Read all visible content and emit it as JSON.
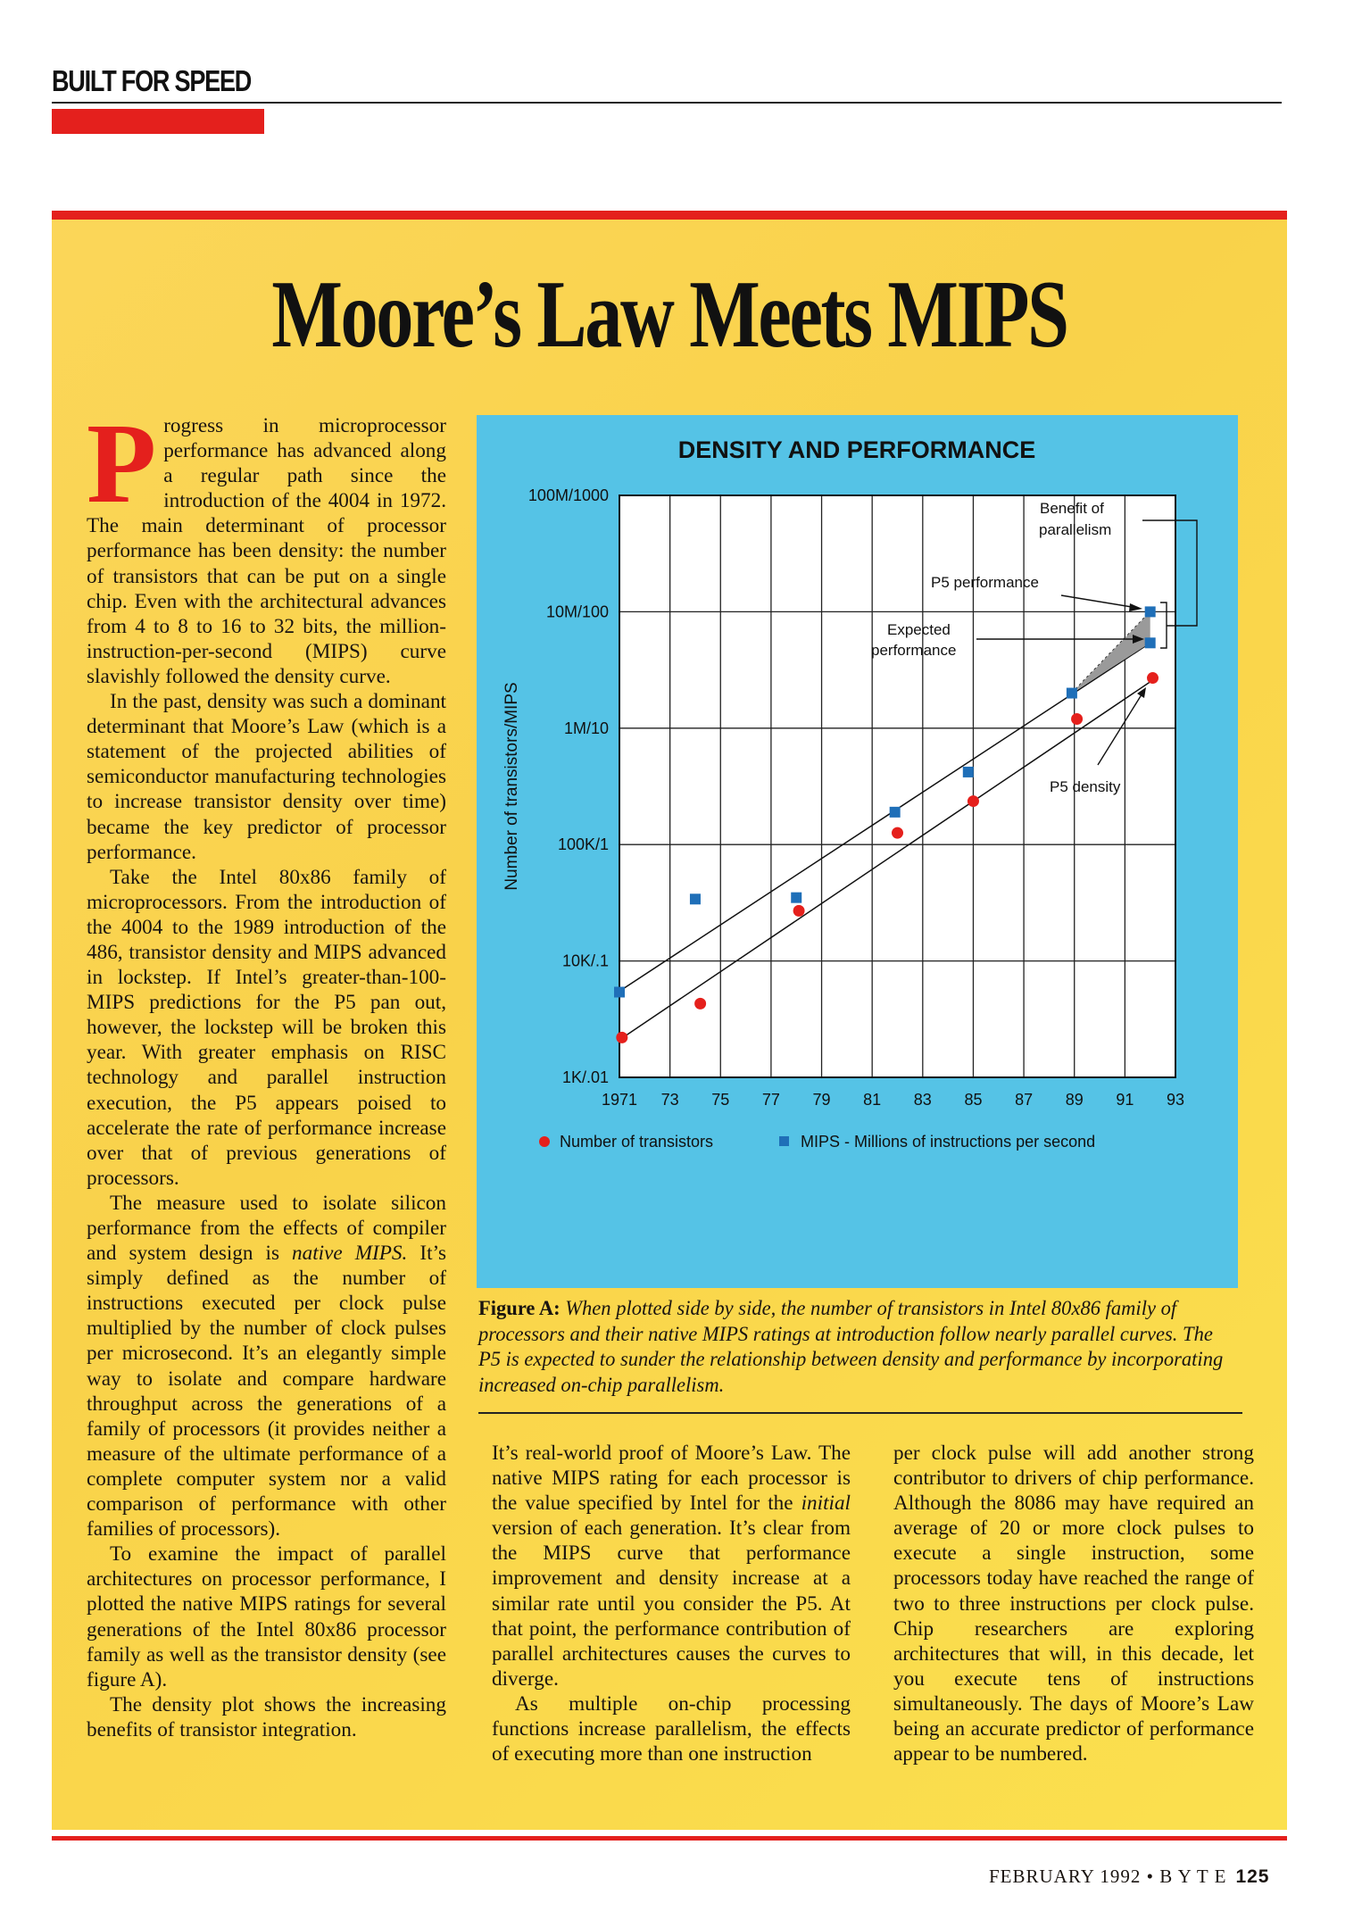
{
  "header": {
    "section_label": "BUILT FOR SPEED"
  },
  "article": {
    "title": "Moore’s Law Meets MIPS",
    "dropcap": "P",
    "col1": [
      "rogress in microprocessor performance has advanced along a regular path since the introduction of the 4004 in 1972. The main determinant of processor performance has been density: the number of transistors that can be put on a single chip. Even with the architectural advances from 4 to 8 to 16 to 32 bits, the million-instruction-per-second (MIPS) curve slavishly followed the density curve.",
      "In the past, density was such a dominant determinant that Moore’s Law (which is a statement of the projected abilities of semiconductor manufacturing technologies to increase transistor density over time) became the key predictor of processor performance.",
      "Take the Intel 80x86 family of microprocessors. From the introduction of the 4004 to the 1989 introduction of the 486, transistor density and MIPS advanced in lockstep. If Intel’s greater-than-100-MIPS predictions for the P5 pan out, however, the lockstep will be broken this year. With greater emphasis on RISC technology and parallel instruction execution, the P5 appears poised to accelerate the rate of performance increase over that of previous generations of processors.",
      "The measure used to isolate silicon performance from the effects of compiler and system design is",
      "native MIPS.",
      "It’s simply defined as the number of instructions executed per clock pulse multiplied by the number of clock pulses per microsecond. It’s an elegantly simple way to isolate and compare hardware throughput across the generations of a family of processors (it provides neither a measure of the ultimate performance of a complete computer system nor a valid comparison of performance with other families of processors).",
      "To examine the impact of parallel architectures on processor performance, I plotted the native MIPS ratings for several generations of the Intel 80x86 processor family as well as the transistor density (see figure A).",
      "The density plot shows the increasing benefits of transistor integration."
    ],
    "col2": [
      "It’s real-world proof of Moore’s Law. The native MIPS rating for each processor is the value specified by Intel for the",
      "initial",
      "version of each generation. It’s clear from the MIPS curve that performance improvement and density increase at a similar rate until you consider the P5. At that point, the performance contribution of parallel architectures causes the curves to diverge.",
      "As multiple on-chip processing functions increase parallelism, the effects of executing more than one instruction"
    ],
    "col3": [
      "per clock pulse will add another strong contributor to drivers of chip performance. Although the 8086 may have required an average of 20 or more clock pulses to execute a single instruction, some processors today have reached the range of two to three instructions per clock pulse. Chip researchers are exploring architectures that will, in this decade, let you execute tens of instructions simultaneously. The days of Moore’s Law being an accurate predictor of performance appear to be numbered."
    ]
  },
  "figure": {
    "caption_label": "Figure A:",
    "caption_text": "When plotted side by side, the number of transistors in Intel 80x86 family of processors and their native MIPS ratings at introduction follow nearly parallel curves. The P5 is expected to sunder the relationship between density and performance by incorporating increased on-chip parallelism."
  },
  "chart_data": {
    "type": "scatter",
    "title": "DENSITY AND PERFORMANCE",
    "ylabel": "Number of transistors/MIPS",
    "xlabel": "",
    "yscale": "log",
    "ylim": [
      1000,
      100000000
    ],
    "xlim": [
      1971,
      1993
    ],
    "x_ticks": [
      "1971",
      "73",
      "75",
      "77",
      "79",
      "81",
      "83",
      "85",
      "87",
      "89",
      "91",
      "93"
    ],
    "y_ticks": [
      {
        "value": 1000,
        "label": "1K/.01"
      },
      {
        "value": 10000,
        "label": "10K/.1"
      },
      {
        "value": 100000,
        "label": "100K/1"
      },
      {
        "value": 1000000,
        "label": "1M/10"
      },
      {
        "value": 10000000,
        "label": "10M/100"
      },
      {
        "value": 100000000,
        "label": "100M/1000"
      }
    ],
    "mips_to_transistor_scale": 100000,
    "grid": true,
    "legend_position": "bottom",
    "series": [
      {
        "name": "Number of transistors",
        "marker": "circle",
        "color": "#e5201c",
        "x": [
          1971.1,
          1974.2,
          1978.1,
          1982.0,
          1985.0,
          1989.1,
          1992.1
        ],
        "y": [
          2200,
          4300,
          27000,
          126000,
          236000,
          1200000,
          2700000
        ]
      },
      {
        "name": "MIPS - Millions of instructions per second",
        "marker": "square",
        "color": "#1f6fb8",
        "x": [
          1971.0,
          1974.0,
          1978.0,
          1981.9,
          1984.8,
          1988.9,
          1992.0,
          1992.0
        ],
        "y": [
          0.054,
          0.34,
          0.35,
          1.9,
          4.2,
          20,
          100,
          54
        ]
      }
    ],
    "trendlines": [
      {
        "name": "transistor-trend",
        "from": [
          1971.0,
          2100
        ],
        "to": [
          1992.0,
          2500000
        ]
      },
      {
        "name": "mips-trend",
        "from": [
          1971.0,
          5500
        ],
        "to": [
          1992.0,
          5400000
        ]
      }
    ],
    "annotations": {
      "benefit": [
        "Benefit of",
        "parallelism"
      ],
      "p5_performance": "P5 performance",
      "expected": [
        "Expected",
        "performance"
      ],
      "p5_density": "P5 density"
    }
  },
  "footer": {
    "issue": "FEBRUARY 1992 • B Y T E",
    "page": "125"
  },
  "colors": {
    "red": "#e4201d",
    "yellow": "#f9d24a",
    "blue_panel": "#55c3e6",
    "mips": "#1f6fb8",
    "transistors": "#e5201c"
  }
}
